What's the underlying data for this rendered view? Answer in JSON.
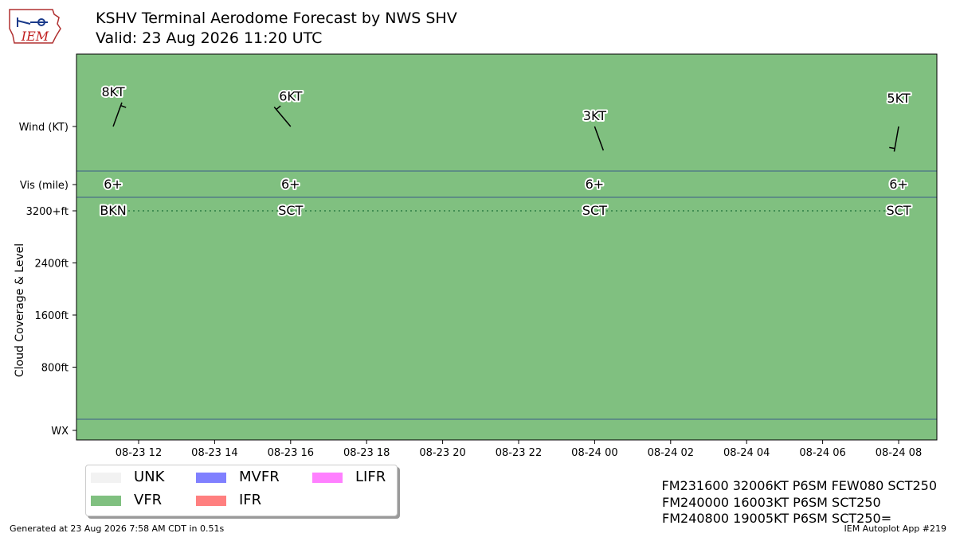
{
  "header": {
    "logo_text": "IEM",
    "title_line1": "KSHV Terminal Aerodome Forecast by NWS SHV",
    "title_line2": "Valid: 23 Aug 2026 11:20 UTC"
  },
  "colors": {
    "plot_background": "#80c080",
    "separator_line": "#3b5b8a",
    "cloud_dotted_line": "#2e7d46",
    "UNK": "#f2f2f2",
    "VFR": "#80c080",
    "MVFR": "#8080ff",
    "IFR": "#ff7f7f",
    "LIFR": "#ff80ff"
  },
  "chart_data": {
    "type": "table",
    "y_rows": {
      "wind_label": "Wind (KT)",
      "vis_label": "Vis (mile)",
      "cloud_axis_label": "Cloud Coverage & Level",
      "cloud_ticks": [
        "3200+ft",
        "2400ft",
        "1600ft",
        "800ft"
      ],
      "wx_label": "WX"
    },
    "x_ticks": [
      "08-23 12",
      "08-23 14",
      "08-23 16",
      "08-23 18",
      "08-23 20",
      "08-23 22",
      "08-24 00",
      "08-24 02",
      "08-24 04",
      "08-24 06",
      "08-24 08"
    ],
    "x_tick_hours": [
      12,
      14,
      16,
      18,
      20,
      22,
      24,
      26,
      28,
      30,
      32
    ],
    "x_range_hours": [
      11,
      32.5
    ],
    "cloud_range_ft": [
      0,
      3200
    ],
    "forecasts": [
      {
        "hour": 11.33,
        "wind_dir_deg": 20,
        "wind_speed_kt": 8,
        "wind_label": "8KT",
        "vis_label": "6+",
        "cloud_cover": "BKN",
        "cloud_level_ft": 3200,
        "flight_category": "VFR"
      },
      {
        "hour": 16,
        "wind_dir_deg": 320,
        "wind_speed_kt": 6,
        "wind_label": "6KT",
        "vis_label": "6+",
        "cloud_cover": "SCT",
        "cloud_level_ft": 3200,
        "flight_category": "VFR"
      },
      {
        "hour": 24,
        "wind_dir_deg": 160,
        "wind_speed_kt": 3,
        "wind_label": "3KT",
        "vis_label": "6+",
        "cloud_cover": "SCT",
        "cloud_level_ft": 3200,
        "flight_category": "VFR"
      },
      {
        "hour": 32,
        "wind_dir_deg": 190,
        "wind_speed_kt": 5,
        "wind_label": "5KT",
        "vis_label": "6+",
        "cloud_cover": "SCT",
        "cloud_level_ft": 3200,
        "flight_category": "VFR"
      }
    ]
  },
  "legend": {
    "items": [
      {
        "label": "UNK",
        "color": "#f2f2f2"
      },
      {
        "label": "MVFR",
        "color": "#8080ff"
      },
      {
        "label": "LIFR",
        "color": "#ff80ff"
      },
      {
        "label": "VFR",
        "color": "#80c080"
      },
      {
        "label": "IFR",
        "color": "#ff7f7f"
      }
    ]
  },
  "raw_taf": {
    "line1": "FM231600 32006KT P6SM FEW080 SCT250",
    "line2": "FM240000 16003KT P6SM SCT250",
    "line3": "FM240800 19005KT P6SM SCT250="
  },
  "footer": {
    "left": "Generated at 23 Aug 2026 7:58 AM CDT in 0.51s",
    "right": "IEM Autoplot App #219"
  }
}
